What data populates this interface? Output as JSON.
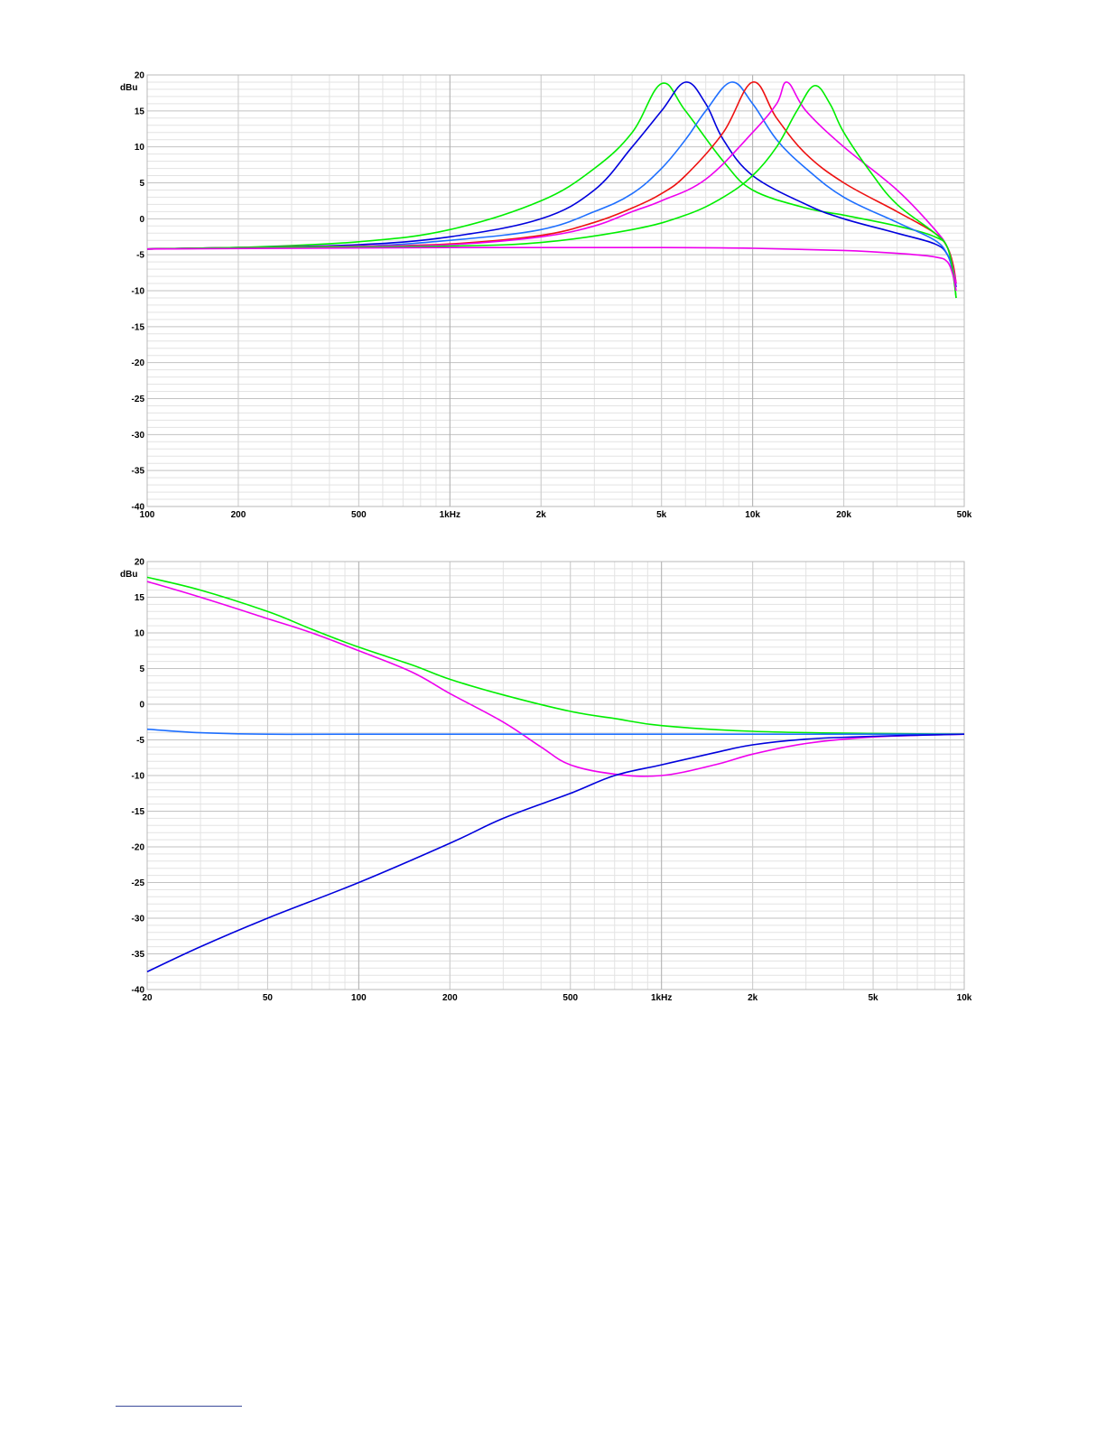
{
  "chart_data": [
    {
      "type": "line",
      "title": "",
      "xlabel": "",
      "ylabel": "dBu",
      "xscale": "log",
      "xlim": [
        100,
        50000
      ],
      "ylim": [
        -40,
        20
      ],
      "grid": true,
      "x_tick_values": [
        100,
        200,
        500,
        1000,
        2000,
        5000,
        10000,
        20000,
        50000
      ],
      "x_tick_labels": [
        "100",
        "200",
        "500",
        "1kHz",
        "2k",
        "5k",
        "10k",
        "20k",
        "50k"
      ],
      "y_tick_values": [
        20,
        15,
        10,
        5,
        0,
        -5,
        -10,
        -15,
        -20,
        -25,
        -30,
        -35,
        -40
      ],
      "y_tick_labels": [
        "20",
        "15",
        "10",
        "5",
        "0",
        "-5",
        "-10",
        "-15",
        "-20",
        "-25",
        "-30",
        "-35",
        "-40"
      ],
      "series": [
        {
          "color": "#00ee00",
          "points": [
            [
              100,
              -4.2
            ],
            [
              200,
              -4.0
            ],
            [
              500,
              -3.2
            ],
            [
              1000,
              -1.5
            ],
            [
              2000,
              2.5
            ],
            [
              3000,
              7
            ],
            [
              4000,
              12
            ],
            [
              5000,
              18.8
            ],
            [
              6000,
              15
            ],
            [
              8000,
              8
            ],
            [
              10000,
              4
            ],
            [
              15000,
              1.5
            ],
            [
              20000,
              0.5
            ],
            [
              30000,
              -1
            ],
            [
              40000,
              -2.5
            ],
            [
              44000,
              -4
            ],
            [
              46000,
              -8
            ],
            [
              47000,
              -11
            ]
          ]
        },
        {
          "color": "#0000dd",
          "points": [
            [
              100,
              -4.2
            ],
            [
              200,
              -4.0
            ],
            [
              500,
              -3.6
            ],
            [
              1000,
              -2.5
            ],
            [
              2000,
              0
            ],
            [
              3000,
              4
            ],
            [
              4000,
              10
            ],
            [
              5000,
              15
            ],
            [
              6000,
              19
            ],
            [
              7000,
              16
            ],
            [
              8000,
              11
            ],
            [
              10000,
              6
            ],
            [
              15000,
              2
            ],
            [
              20000,
              0
            ],
            [
              30000,
              -2
            ],
            [
              40000,
              -3.5
            ],
            [
              44000,
              -5
            ],
            [
              46000,
              -7.5
            ],
            [
              47000,
              -9.5
            ]
          ]
        },
        {
          "color": "#1e6fff",
          "points": [
            [
              100,
              -4.2
            ],
            [
              200,
              -4.0
            ],
            [
              500,
              -3.8
            ],
            [
              1000,
              -3.0
            ],
            [
              2000,
              -1.5
            ],
            [
              3000,
              1
            ],
            [
              4000,
              3.5
            ],
            [
              5000,
              7
            ],
            [
              6000,
              11
            ],
            [
              7000,
              15
            ],
            [
              8500,
              19
            ],
            [
              10000,
              16
            ],
            [
              12000,
              11
            ],
            [
              15000,
              7
            ],
            [
              20000,
              3
            ],
            [
              30000,
              -0.5
            ],
            [
              40000,
              -3
            ],
            [
              44000,
              -5
            ],
            [
              46000,
              -7.5
            ],
            [
              47000,
              -9
            ]
          ]
        },
        {
          "color": "#ee1111",
          "points": [
            [
              100,
              -4.2
            ],
            [
              200,
              -4.0
            ],
            [
              500,
              -3.8
            ],
            [
              1000,
              -3.5
            ],
            [
              2000,
              -2.3
            ],
            [
              3000,
              -0.5
            ],
            [
              4000,
              1.5
            ],
            [
              5000,
              3.5
            ],
            [
              6000,
              6
            ],
            [
              8000,
              12
            ],
            [
              10000,
              19
            ],
            [
              12000,
              14
            ],
            [
              15000,
              9
            ],
            [
              20000,
              5
            ],
            [
              30000,
              1
            ],
            [
              40000,
              -2
            ],
            [
              44000,
              -4
            ],
            [
              46000,
              -6.5
            ],
            [
              47000,
              -9
            ]
          ]
        },
        {
          "color": "#ee00ee",
          "points": [
            [
              100,
              -4.2
            ],
            [
              200,
              -4.0
            ],
            [
              500,
              -3.8
            ],
            [
              1000,
              -3.6
            ],
            [
              2000,
              -2.5
            ],
            [
              3000,
              -1
            ],
            [
              4000,
              1
            ],
            [
              5000,
              2.5
            ],
            [
              7000,
              5.5
            ],
            [
              10000,
              12
            ],
            [
              12000,
              16
            ],
            [
              13000,
              19
            ],
            [
              15000,
              15
            ],
            [
              20000,
              10
            ],
            [
              30000,
              4
            ],
            [
              40000,
              -1.5
            ],
            [
              44000,
              -4
            ],
            [
              46000,
              -7
            ],
            [
              47000,
              -9
            ]
          ]
        },
        {
          "color": "#00ee00",
          "points": [
            [
              100,
              -4.2
            ],
            [
              200,
              -4.0
            ],
            [
              500,
              -3.9
            ],
            [
              1000,
              -3.8
            ],
            [
              2000,
              -3.3
            ],
            [
              4000,
              -1.5
            ],
            [
              6000,
              0.5
            ],
            [
              8000,
              3
            ],
            [
              10000,
              6
            ],
            [
              12000,
              10
            ],
            [
              14000,
              15
            ],
            [
              16000,
              18.5
            ],
            [
              18000,
              16
            ],
            [
              20000,
              12
            ],
            [
              25000,
              6
            ],
            [
              30000,
              2
            ],
            [
              40000,
              -2
            ],
            [
              44000,
              -4
            ],
            [
              46000,
              -7.5
            ],
            [
              47000,
              -11
            ]
          ]
        },
        {
          "color": "#ee00ee",
          "points": [
            [
              100,
              -4.2
            ],
            [
              1000,
              -4.0
            ],
            [
              5000,
              -4.0
            ],
            [
              10000,
              -4.1
            ],
            [
              20000,
              -4.4
            ],
            [
              30000,
              -4.8
            ],
            [
              40000,
              -5.3
            ],
            [
              44000,
              -6
            ],
            [
              46000,
              -8
            ],
            [
              47000,
              -10
            ]
          ]
        }
      ]
    },
    {
      "type": "line",
      "title": "",
      "xlabel": "",
      "ylabel": "dBu",
      "xscale": "log",
      "xlim": [
        20,
        10000
      ],
      "ylim": [
        -40,
        20
      ],
      "grid": true,
      "x_tick_values": [
        20,
        50,
        100,
        200,
        500,
        1000,
        2000,
        5000,
        10000
      ],
      "x_tick_labels": [
        "20",
        "50",
        "100",
        "200",
        "500",
        "1kHz",
        "2k",
        "5k",
        "10k"
      ],
      "y_tick_values": [
        20,
        15,
        10,
        5,
        0,
        -5,
        -10,
        -15,
        -20,
        -25,
        -30,
        -35,
        -40
      ],
      "y_tick_labels": [
        "20",
        "15",
        "10",
        "5",
        "0",
        "-5",
        "-10",
        "-15",
        "-20",
        "-25",
        "-30",
        "-35",
        "-40"
      ],
      "series": [
        {
          "color": "#00ee00",
          "points": [
            [
              20,
              17.8
            ],
            [
              30,
              16
            ],
            [
              50,
              13
            ],
            [
              70,
              10.5
            ],
            [
              100,
              8
            ],
            [
              150,
              5.5
            ],
            [
              200,
              3.5
            ],
            [
              300,
              1.3
            ],
            [
              500,
              -1
            ],
            [
              700,
              -2
            ],
            [
              1000,
              -3
            ],
            [
              2000,
              -3.8
            ],
            [
              5000,
              -4.1
            ],
            [
              10000,
              -4.2
            ]
          ]
        },
        {
          "color": "#ee00ee",
          "points": [
            [
              20,
              17.2
            ],
            [
              30,
              15
            ],
            [
              50,
              12
            ],
            [
              70,
              10
            ],
            [
              100,
              7.5
            ],
            [
              150,
              4.5
            ],
            [
              200,
              1.5
            ],
            [
              300,
              -2.5
            ],
            [
              400,
              -6
            ],
            [
              500,
              -8.5
            ],
            [
              700,
              -9.8
            ],
            [
              1000,
              -10
            ],
            [
              1500,
              -8.5
            ],
            [
              2000,
              -7
            ],
            [
              3000,
              -5.5
            ],
            [
              5000,
              -4.6
            ],
            [
              10000,
              -4.2
            ]
          ]
        },
        {
          "color": "#1e6fff",
          "points": [
            [
              20,
              -3.5
            ],
            [
              30,
              -4.0
            ],
            [
              50,
              -4.2
            ],
            [
              100,
              -4.2
            ],
            [
              1000,
              -4.2
            ],
            [
              10000,
              -4.2
            ]
          ]
        },
        {
          "color": "#0000dd",
          "points": [
            [
              20,
              -37.5
            ],
            [
              30,
              -34
            ],
            [
              50,
              -30
            ],
            [
              100,
              -25
            ],
            [
              200,
              -19.5
            ],
            [
              300,
              -16
            ],
            [
              500,
              -12.5
            ],
            [
              700,
              -10
            ],
            [
              1000,
              -8.5
            ],
            [
              1500,
              -6.8
            ],
            [
              2000,
              -5.7
            ],
            [
              3000,
              -4.9
            ],
            [
              5000,
              -4.5
            ],
            [
              10000,
              -4.2
            ]
          ]
        }
      ]
    }
  ]
}
